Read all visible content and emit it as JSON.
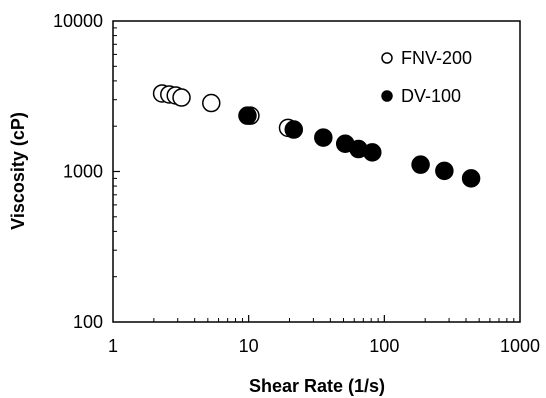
{
  "chart_data": {
    "type": "scatter",
    "title": "",
    "xlabel": "Shear Rate (1/s)",
    "ylabel": "Viscosity (cP)",
    "xscale": "log",
    "yscale": "log",
    "xlim": [
      1,
      1000
    ],
    "ylim": [
      100,
      10000
    ],
    "xticks": [
      1,
      10,
      100,
      1000
    ],
    "xtick_labels": [
      "1",
      "10",
      "100",
      "1000"
    ],
    "yticks": [
      100,
      1000,
      10000
    ],
    "ytick_labels": [
      "100",
      "1000",
      "10000"
    ],
    "grid": false,
    "legend_position": "top-right",
    "series": [
      {
        "name": "FNV-200",
        "marker": "open-circle",
        "color": "#000000",
        "x": [
          2.3,
          2.6,
          2.9,
          3.2,
          5.3,
          10.3,
          19.5
        ],
        "y": [
          3300,
          3250,
          3200,
          3100,
          2850,
          2350,
          1950
        ]
      },
      {
        "name": "DV-100",
        "marker": "filled-circle",
        "color": "#000000",
        "x": [
          9.8,
          21.5,
          35.5,
          51.5,
          64.5,
          81.5,
          185,
          277,
          436
        ],
        "y": [
          2350,
          1900,
          1680,
          1530,
          1410,
          1340,
          1110,
          1010,
          900
        ]
      }
    ]
  }
}
